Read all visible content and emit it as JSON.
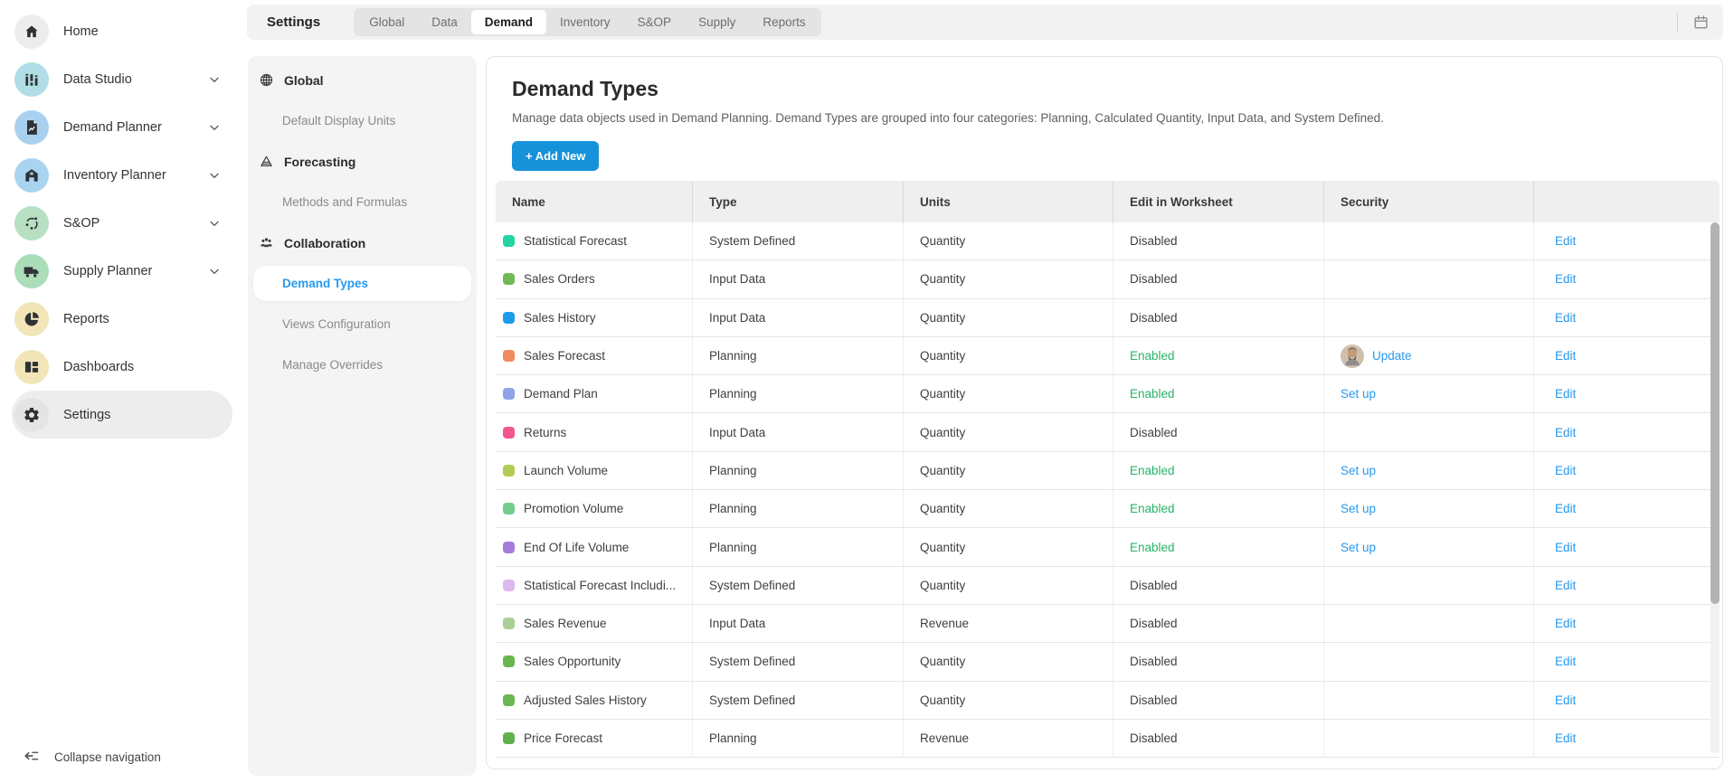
{
  "topbar": {
    "title": "Settings",
    "tabs": [
      {
        "label": "Global",
        "active": false
      },
      {
        "label": "Data",
        "active": false
      },
      {
        "label": "Demand",
        "active": true
      },
      {
        "label": "Inventory",
        "active": false
      },
      {
        "label": "S&OP",
        "active": false
      },
      {
        "label": "Supply",
        "active": false
      },
      {
        "label": "Reports",
        "active": false
      }
    ],
    "calendar_icon": "calendar-icon"
  },
  "sidebar": {
    "items": [
      {
        "label": "Home",
        "icon": "home-icon",
        "circle_color": "#ededed",
        "expandable": false,
        "active": false
      },
      {
        "label": "Data Studio",
        "icon": "equalizer-icon",
        "circle_color": "#b0dde6",
        "expandable": true,
        "active": false
      },
      {
        "label": "Demand Planner",
        "icon": "document-chart-icon",
        "circle_color": "#a9d1ef",
        "expandable": true,
        "active": false
      },
      {
        "label": "Inventory Planner",
        "icon": "warehouse-icon",
        "circle_color": "#a9d4f0",
        "expandable": true,
        "active": false
      },
      {
        "label": "S&OP",
        "icon": "cycle-dots-icon",
        "circle_color": "#b7e0c2",
        "expandable": true,
        "active": false
      },
      {
        "label": "Supply Planner",
        "icon": "truck-icon",
        "circle_color": "#aaddb8",
        "expandable": true,
        "active": false
      },
      {
        "label": "Reports",
        "icon": "pie-chart-icon",
        "circle_color": "#f2e6b8",
        "expandable": false,
        "active": false
      },
      {
        "label": "Dashboards",
        "icon": "dashboard-icon",
        "circle_color": "#f2e6b8",
        "expandable": false,
        "active": false
      },
      {
        "label": "Settings",
        "icon": "gear-icon",
        "circle_color": "#e4e4e4",
        "expandable": false,
        "active": true
      }
    ],
    "collapse_label": "Collapse navigation"
  },
  "settings_menu": {
    "entries": [
      {
        "type": "header",
        "label": "Global",
        "icon": "globe-icon"
      },
      {
        "type": "item",
        "label": "Default Display Units",
        "active": false
      },
      {
        "type": "header",
        "label": "Forecasting",
        "icon": "funnel-icon"
      },
      {
        "type": "item",
        "label": "Methods and Formulas",
        "active": false
      },
      {
        "type": "header",
        "label": "Collaboration",
        "icon": "people-icon"
      },
      {
        "type": "item",
        "label": "Demand Types",
        "active": true
      },
      {
        "type": "item",
        "label": "Views Configuration",
        "active": false
      },
      {
        "type": "item",
        "label": "Manage Overrides",
        "active": false
      }
    ]
  },
  "main": {
    "title": "Demand Types",
    "description": "Manage data objects used in Demand Planning. Demand Types are grouped into four categories: Planning, Calculated Quantity, Input Data, and System Defined.",
    "add_button": "+ Add New",
    "table": {
      "columns": [
        "Name",
        "Type",
        "Units",
        "Edit in Worksheet",
        "Security",
        ""
      ],
      "edit_label": "Edit",
      "rows": [
        {
          "name": "Statistical Forecast",
          "color": "#22d5a3",
          "type": "System Defined",
          "units": "Quantity",
          "worksheet": "Disabled",
          "security": ""
        },
        {
          "name": "Sales Orders",
          "color": "#72b958",
          "type": "Input Data",
          "units": "Quantity",
          "worksheet": "Disabled",
          "security": ""
        },
        {
          "name": "Sales History",
          "color": "#1d9be9",
          "type": "Input Data",
          "units": "Quantity",
          "worksheet": "Disabled",
          "security": ""
        },
        {
          "name": "Sales Forecast",
          "color": "#ef8a60",
          "type": "Planning",
          "units": "Quantity",
          "worksheet": "Enabled",
          "security": "Update",
          "security_avatar": true
        },
        {
          "name": "Demand Plan",
          "color": "#8fa3e8",
          "type": "Planning",
          "units": "Quantity",
          "worksheet": "Enabled",
          "security": "Set up"
        },
        {
          "name": "Returns",
          "color": "#f2558f",
          "type": "Input Data",
          "units": "Quantity",
          "worksheet": "Disabled",
          "security": ""
        },
        {
          "name": "Launch Volume",
          "color": "#b3cc56",
          "type": "Planning",
          "units": "Quantity",
          "worksheet": "Enabled",
          "security": "Set up"
        },
        {
          "name": "Promotion Volume",
          "color": "#74cd8c",
          "type": "Planning",
          "units": "Quantity",
          "worksheet": "Enabled",
          "security": "Set up"
        },
        {
          "name": "End Of Life Volume",
          "color": "#a47cda",
          "type": "Planning",
          "units": "Quantity",
          "worksheet": "Enabled",
          "security": "Set up"
        },
        {
          "name": "Statistical Forecast Includi...",
          "color": "#ddb8ef",
          "type": "System Defined",
          "units": "Quantity",
          "worksheet": "Disabled",
          "security": ""
        },
        {
          "name": "Sales Revenue",
          "color": "#a9cf96",
          "type": "Input Data",
          "units": "Revenue",
          "worksheet": "Disabled",
          "security": ""
        },
        {
          "name": "Sales Opportunity",
          "color": "#69b550",
          "type": "System Defined",
          "units": "Quantity",
          "worksheet": "Disabled",
          "security": ""
        },
        {
          "name": "Adjusted Sales History",
          "color": "#6ab655",
          "type": "System Defined",
          "units": "Quantity",
          "worksheet": "Disabled",
          "security": ""
        },
        {
          "name": "Price Forecast",
          "color": "#5fb14d",
          "type": "Planning",
          "units": "Revenue",
          "worksheet": "Disabled",
          "security": ""
        }
      ]
    }
  },
  "colors": {
    "link_blue": "#2699f0",
    "button_blue": "#1692da",
    "enabled_green": "#27b368"
  }
}
